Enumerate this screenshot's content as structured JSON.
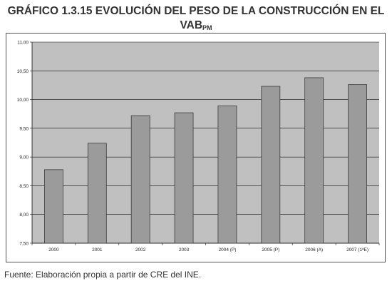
{
  "title": {
    "line1": "GRÁFICO 1.3.15 EVOLUCIÓN DEL PESO DE LA CONSTRUCCIÓN EN EL",
    "line2_main": "VAB",
    "line2_sub": "PM"
  },
  "source": "Fuente: Elaboración propia a partir de CRE del INE.",
  "colors": {
    "plot_background": "#c0c0c0",
    "bar_fill": "#9b9b9b",
    "bar_stroke": "#3a3a3a",
    "gridline": "#111111"
  },
  "chart_data": {
    "type": "bar",
    "categories": [
      "2000",
      "2001",
      "2002",
      "2003",
      "2004 (P)",
      "2005 (P)",
      "2006 (A)",
      "2007 (1ªE)"
    ],
    "values": [
      8.78,
      9.24,
      9.72,
      9.77,
      9.89,
      10.23,
      10.38,
      10.26
    ],
    "ylim": [
      7.5,
      11.0
    ],
    "yticks": [
      "7,50",
      "8,00",
      "8,50",
      "9,00",
      "9,50",
      "10,00",
      "10,50",
      "11,00"
    ],
    "ytick_values": [
      7.5,
      8.0,
      8.5,
      9.0,
      9.5,
      10.0,
      10.5,
      11.0
    ],
    "grid": true,
    "legend": "none"
  }
}
